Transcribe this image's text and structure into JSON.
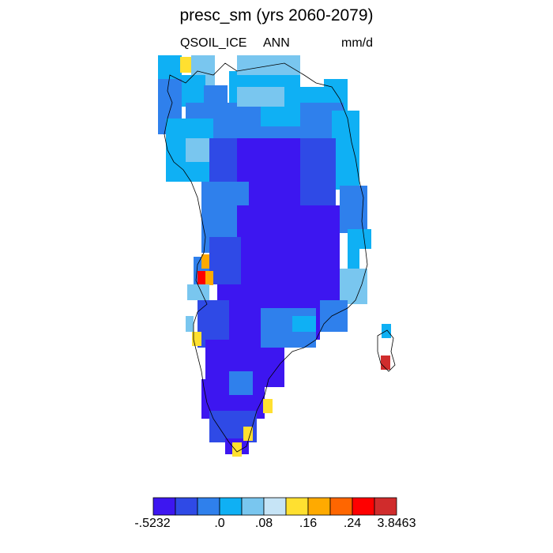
{
  "title": "presc_sm (yrs 2060-2079)",
  "left_label": "QSOIL_ICE",
  "center_label": "ANN",
  "right_label": "mm/d",
  "colorbar": {
    "colors": [
      "#3d16f0",
      "#2f4ae6",
      "#2f80ec",
      "#0fb0f4",
      "#79c6ef",
      "#c6e4f6",
      "#ffe030",
      "#ffaa00",
      "#ff6600",
      "#ff0000",
      "#d02c2c"
    ],
    "labels": [
      "-.5232",
      ".0",
      ".08",
      ".16",
      ".24",
      "3.8463"
    ]
  }
}
